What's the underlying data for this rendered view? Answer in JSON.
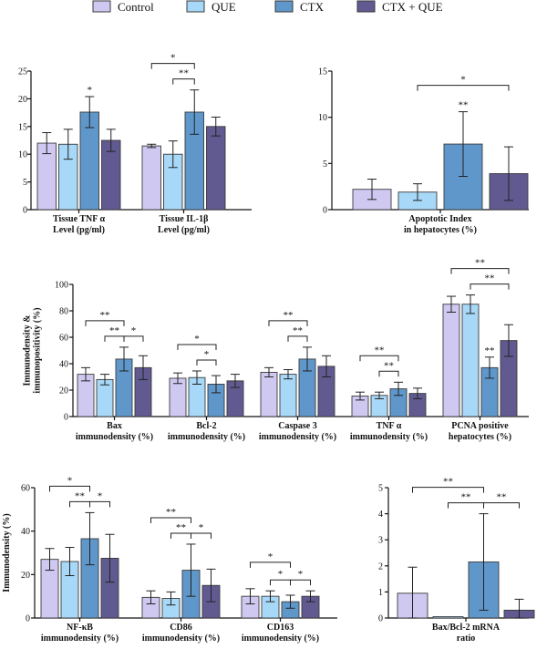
{
  "legend": {
    "series": [
      {
        "name": "Control",
        "color": "#cfc9f2"
      },
      {
        "name": "QUE",
        "color": "#a8d8f7"
      },
      {
        "name": "CTX",
        "color": "#5f97cb"
      },
      {
        "name": "CTX + QUE",
        "color": "#605a91"
      }
    ]
  },
  "chart_data": [
    {
      "type": "bar",
      "id": "tissue-cytokines",
      "ylim": [
        0,
        25
      ],
      "yticks": [
        0,
        5,
        10,
        15,
        20,
        25
      ],
      "ylabel": "",
      "categories": [
        {
          "label": [
            "Tissue TNF α",
            "Level (pg/ml)"
          ]
        },
        {
          "label": [
            "Tissue IL-1β",
            "Level (pg/ml)"
          ]
        }
      ],
      "series": [
        {
          "name": "Control",
          "values": [
            12,
            11.5
          ],
          "errors": [
            1.9,
            0.3
          ]
        },
        {
          "name": "QUE",
          "values": [
            11.8,
            10
          ],
          "errors": [
            2.7,
            2.4
          ]
        },
        {
          "name": "CTX",
          "values": [
            17.6,
            17.6
          ],
          "errors": [
            2.8,
            4
          ]
        },
        {
          "name": "CTX + QUE",
          "values": [
            12.5,
            15
          ],
          "errors": [
            2,
            1.7
          ]
        }
      ],
      "significance": [
        {
          "cat": 0,
          "from": 2,
          "to": 2,
          "level": 0,
          "label": "*"
        },
        {
          "cat": 1,
          "from": 0,
          "to": 2,
          "level": 1,
          "label": "*"
        },
        {
          "cat": 1,
          "from": 1,
          "to": 2,
          "level": 0,
          "label": "**"
        }
      ]
    },
    {
      "type": "bar",
      "id": "apoptotic-index",
      "ylim": [
        0,
        15
      ],
      "yticks": [
        0,
        5,
        10,
        15
      ],
      "ylabel": "",
      "categories": [
        {
          "label": [
            "Apoptotic Index",
            "in hepatocytes (%)"
          ]
        }
      ],
      "series": [
        {
          "name": "Control",
          "values": [
            2.2
          ],
          "errors": [
            1.1
          ]
        },
        {
          "name": "QUE",
          "values": [
            1.9
          ],
          "errors": [
            0.9
          ]
        },
        {
          "name": "CTX",
          "values": [
            7.1
          ],
          "errors": [
            3.5
          ]
        },
        {
          "name": "CTX + QUE",
          "values": [
            3.9
          ],
          "errors": [
            2.9
          ]
        }
      ],
      "significance": [
        {
          "cat": 0,
          "from": 1,
          "to": 3,
          "level": 1,
          "label": "*"
        },
        {
          "cat": 0,
          "from": 2,
          "to": 2,
          "level": 0,
          "label": "**"
        }
      ]
    },
    {
      "type": "bar",
      "id": "immunodensity",
      "ylim": [
        0,
        100
      ],
      "yticks": [
        0,
        20,
        40,
        60,
        80,
        100
      ],
      "ylabel": [
        "Immunodensity &",
        "immunopositivity (%)"
      ],
      "categories": [
        {
          "label": [
            "Bax",
            "immunodensity (%)"
          ]
        },
        {
          "label": [
            "Bcl-2",
            "immunodensity (%)"
          ]
        },
        {
          "label": [
            "Caspase 3",
            "immunodensity (%)"
          ]
        },
        {
          "label": [
            "TNF α",
            "immunodensity (%)"
          ]
        },
        {
          "label": [
            "PCNA positive",
            "hepatocytes (%)"
          ]
        }
      ],
      "series": [
        {
          "name": "Control",
          "values": [
            32,
            29,
            33.5,
            15.5,
            85
          ],
          "errors": [
            5,
            4,
            3.5,
            3,
            6
          ]
        },
        {
          "name": "QUE",
          "values": [
            28,
            29.5,
            32,
            16,
            85
          ],
          "errors": [
            4,
            5,
            3.5,
            2.5,
            7
          ]
        },
        {
          "name": "CTX",
          "values": [
            43.5,
            24.5,
            43.5,
            21,
            37
          ],
          "errors": [
            9,
            6.5,
            9,
            5,
            8
          ]
        },
        {
          "name": "CTX + QUE",
          "values": [
            37,
            27,
            38,
            17.5,
            57.5
          ],
          "errors": [
            9,
            5,
            8,
            4,
            12
          ]
        }
      ],
      "significance": [
        {
          "cat": 0,
          "from": 0,
          "to": 2,
          "level": 1,
          "label": "**"
        },
        {
          "cat": 0,
          "from": 1,
          "to": 2,
          "level": 0,
          "label": "**"
        },
        {
          "cat": 0,
          "from": 2,
          "to": 3,
          "level": 0,
          "label": "*"
        },
        {
          "cat": 1,
          "from": 0,
          "to": 2,
          "level": 1,
          "label": "*"
        },
        {
          "cat": 1,
          "from": 1,
          "to": 2,
          "level": 0,
          "label": "*"
        },
        {
          "cat": 2,
          "from": 0,
          "to": 2,
          "level": 1,
          "label": "**"
        },
        {
          "cat": 2,
          "from": 1,
          "to": 2,
          "level": 0,
          "label": "**"
        },
        {
          "cat": 3,
          "from": 0,
          "to": 2,
          "level": 1,
          "label": "**"
        },
        {
          "cat": 3,
          "from": 1,
          "to": 2,
          "level": 0,
          "label": "**"
        },
        {
          "cat": 4,
          "from": 0,
          "to": 3,
          "level": 1,
          "label": "**"
        },
        {
          "cat": 4,
          "from": 1,
          "to": 3,
          "level": 0,
          "label": "**"
        },
        {
          "cat": 4,
          "from": 2,
          "to": 2,
          "level": -1,
          "label": "**"
        }
      ]
    },
    {
      "type": "bar",
      "id": "inflammatory-markers",
      "ylim": [
        0,
        60
      ],
      "yticks": [
        0,
        20,
        40,
        60
      ],
      "ylabel": [
        "Immunodensity (%)"
      ],
      "categories": [
        {
          "label": [
            "NF-κB",
            "immunodensity (%)"
          ]
        },
        {
          "label": [
            "CD86",
            "immunodensity (%)"
          ]
        },
        {
          "label": [
            "CD163",
            "immunodensity (%)"
          ]
        }
      ],
      "series": [
        {
          "name": "Control",
          "values": [
            27,
            9.5,
            10
          ],
          "errors": [
            5,
            3,
            3.5
          ]
        },
        {
          "name": "QUE",
          "values": [
            26,
            9,
            10
          ],
          "errors": [
            6.5,
            3,
            2.5
          ]
        },
        {
          "name": "CTX",
          "values": [
            36.5,
            22,
            7.5
          ],
          "errors": [
            12,
            12,
            3
          ]
        },
        {
          "name": "CTX + QUE",
          "values": [
            27.5,
            15,
            10
          ],
          "errors": [
            11,
            7.5,
            2.5
          ]
        }
      ],
      "significance": [
        {
          "cat": 0,
          "from": 0,
          "to": 2,
          "level": 1,
          "label": "*"
        },
        {
          "cat": 0,
          "from": 1,
          "to": 2,
          "level": 0,
          "label": "**"
        },
        {
          "cat": 0,
          "from": 2,
          "to": 3,
          "level": 0,
          "label": "*"
        },
        {
          "cat": 1,
          "from": 0,
          "to": 2,
          "level": 1,
          "label": "**"
        },
        {
          "cat": 1,
          "from": 1,
          "to": 2,
          "level": 0,
          "label": "**"
        },
        {
          "cat": 1,
          "from": 2,
          "to": 3,
          "level": 0,
          "label": "*"
        },
        {
          "cat": 2,
          "from": 0,
          "to": 2,
          "level": 1,
          "label": "*"
        },
        {
          "cat": 2,
          "from": 1,
          "to": 2,
          "level": 0,
          "label": "*"
        },
        {
          "cat": 2,
          "from": 2,
          "to": 3,
          "level": 0,
          "label": "*"
        }
      ]
    },
    {
      "type": "bar",
      "id": "mrna-ratio",
      "ylim": [
        0,
        5
      ],
      "yticks": [
        0,
        1,
        2,
        3,
        4,
        5
      ],
      "ylabel": "",
      "categories": [
        {
          "label": [
            "Bax/Bcl-2 mRNA",
            "ratio"
          ]
        }
      ],
      "series": [
        {
          "name": "Control",
          "values": [
            0.95
          ],
          "errors": [
            1
          ]
        },
        {
          "name": "QUE",
          "values": [
            0.05
          ],
          "errors": [
            0
          ]
        },
        {
          "name": "CTX",
          "values": [
            2.15
          ],
          "errors": [
            1.85
          ]
        },
        {
          "name": "CTX + QUE",
          "values": [
            0.3
          ],
          "errors": [
            0.42
          ]
        }
      ],
      "significance": [
        {
          "cat": 0,
          "from": 0,
          "to": 2,
          "level": 1,
          "label": "**"
        },
        {
          "cat": 0,
          "from": 1,
          "to": 2,
          "level": 0,
          "label": "**"
        },
        {
          "cat": 0,
          "from": 2,
          "to": 3,
          "level": 0,
          "label": "**"
        }
      ]
    }
  ]
}
